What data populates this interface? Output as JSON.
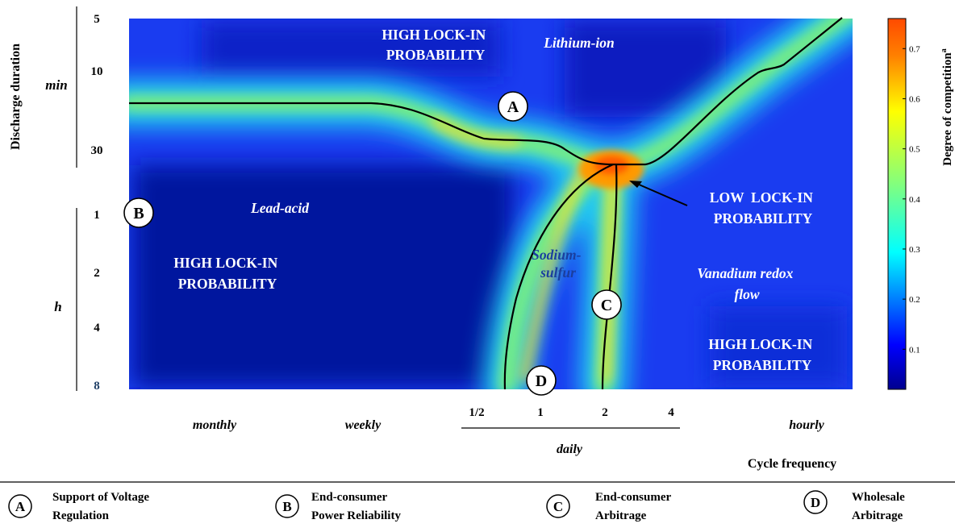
{
  "chart_data": {
    "type": "heatmap",
    "title": "",
    "xlabel": "Cycle frequency",
    "ylabel": "Discharge duration",
    "colorbar_label": "Degree of competition",
    "colorbar_label_superscript": "a",
    "colorbar_ticks": [
      "0.1",
      "0.2",
      "0.3",
      "0.4",
      "0.5",
      "0.6",
      "0.7"
    ],
    "colorbar_tick_values": [
      0.1,
      0.2,
      0.3,
      0.4,
      0.5,
      0.6,
      0.7
    ],
    "colorbar_range": [
      0.02,
      0.76
    ],
    "colormap": "jet",
    "y_units": [
      {
        "label": "min",
        "ticks": [
          "5",
          "10",
          "30"
        ]
      },
      {
        "label": "h",
        "ticks": [
          "1",
          "2",
          "4",
          "8"
        ]
      }
    ],
    "x_ticks": [
      "monthly",
      "weekly",
      "1/2",
      "1",
      "2",
      "4",
      "hourly"
    ],
    "x_group_label": "daily",
    "x_group_ticks": [
      "1/2",
      "1",
      "2",
      "4"
    ],
    "region_labels": [
      {
        "text_lines": [
          "HIGH LOCK-IN",
          "PROBABILITY"
        ],
        "style": "bold",
        "color": "#ffffff"
      },
      {
        "text_lines": [
          "Lithium-ion"
        ],
        "style": "bold-italic",
        "color": "#ffffff"
      },
      {
        "text_lines": [
          "Lead-acid"
        ],
        "style": "bold-italic",
        "color": "#ffffff"
      },
      {
        "text_lines": [
          "HIGH LOCK-IN",
          "PROBABILITY"
        ],
        "style": "bold",
        "color": "#ffffff"
      },
      {
        "text_lines": [
          "Sodium-",
          "sulfur"
        ],
        "style": "bold-italic",
        "color": "#1a3f9e"
      },
      {
        "text_lines": [
          "LOW  LOCK-IN",
          "PROBABILITY"
        ],
        "style": "bold",
        "color": "#ffffff"
      },
      {
        "text_lines": [
          "Vanadium redox",
          "flow"
        ],
        "style": "bold-italic",
        "color": "#ffffff"
      },
      {
        "text_lines": [
          "HIGH LOCK-IN",
          "PROBABILITY"
        ],
        "style": "bold",
        "color": "#ffffff"
      }
    ],
    "markers": [
      {
        "letter": "A",
        "description": "Support of Voltage Regulation"
      },
      {
        "letter": "B",
        "description": "End-consumer Power Reliability"
      },
      {
        "letter": "C",
        "description": "End-consumer Arbitrage"
      },
      {
        "letter": "D",
        "description": "Wholesale Arbitrage"
      }
    ],
    "grid": false
  },
  "legend": {
    "items": [
      {
        "letter": "A",
        "lines": [
          "Support of Voltage",
          "Regulation"
        ]
      },
      {
        "letter": "B",
        "lines": [
          "End-consumer",
          "Power Reliability"
        ]
      },
      {
        "letter": "C",
        "lines": [
          "End-consumer",
          "Arbitrage"
        ]
      },
      {
        "letter": "D",
        "lines": [
          "Wholesale",
          "Arbitrage"
        ]
      }
    ]
  }
}
